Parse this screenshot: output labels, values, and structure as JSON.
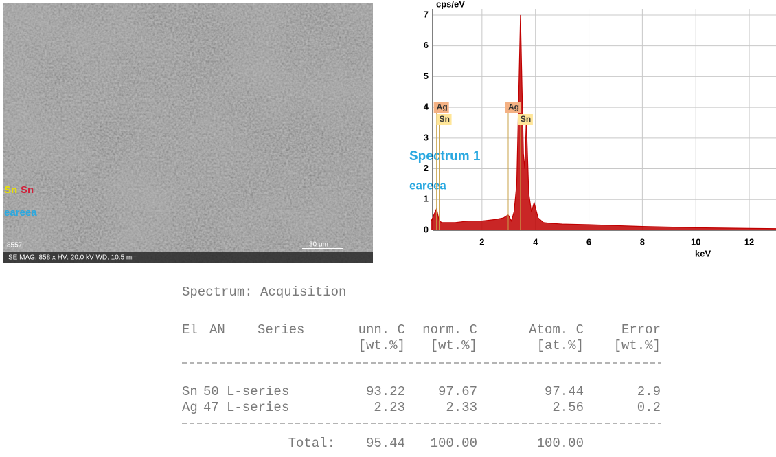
{
  "sem_image": {
    "overlay_labels": [
      {
        "text": "Sn",
        "color": "#e8e000"
      },
      {
        "text": "Sn",
        "color": "#d0203a"
      }
    ],
    "area_label": "eareea",
    "id": "8557",
    "scale_bar": "30 µm",
    "footer": "SE  MAG: 858 x  HV: 20.0 kV  WD: 10.5 mm"
  },
  "chart_data": {
    "type": "area",
    "ylabel": "cps/eV",
    "xlabel": "keV",
    "annotations": [
      "Spectrum  1",
      "eareea"
    ],
    "xlim": [
      0,
      13
    ],
    "ylim": [
      0,
      7.2
    ],
    "xticks": [
      2,
      4,
      6,
      8,
      10,
      12
    ],
    "yticks": [
      0,
      1,
      2,
      3,
      4,
      5,
      6,
      7
    ],
    "grid": true,
    "series": [
      {
        "color": "#c00000",
        "x": [
          0.1,
          0.2,
          0.3,
          0.4,
          0.5,
          0.7,
          1,
          1.5,
          2,
          2.5,
          2.8,
          2.98,
          3.1,
          3.2,
          3.3,
          3.44,
          3.55,
          3.6,
          3.66,
          3.75,
          3.85,
          3.95,
          4.1,
          4.3,
          4.6,
          5,
          6,
          7,
          8,
          9,
          10,
          11,
          12,
          13
        ],
        "values": [
          0.3,
          0.5,
          0.7,
          0.3,
          0.25,
          0.25,
          0.25,
          0.3,
          0.3,
          0.35,
          0.4,
          0.5,
          0.3,
          0.6,
          1.5,
          7.0,
          2.5,
          2.0,
          3.6,
          1.2,
          0.6,
          0.9,
          0.4,
          0.25,
          0.22,
          0.2,
          0.18,
          0.15,
          0.12,
          0.1,
          0.08,
          0.07,
          0.06,
          0.05
        ]
      }
    ],
    "markers": [
      {
        "label": "Ag",
        "x": 0.3,
        "color": "#f4b183",
        "level": 4
      },
      {
        "label": "Sn",
        "x": 0.4,
        "color": "#ffe699",
        "level": 3.6
      },
      {
        "label": "Ag",
        "x": 2.98,
        "color": "#f4b183",
        "level": 4
      },
      {
        "label": "Sn",
        "x": 3.44,
        "color": "#ffe699",
        "level": 3.6
      }
    ]
  },
  "table": {
    "title": "Spectrum: Acquisition",
    "header": [
      "El",
      "AN",
      "Series",
      "unn. C",
      "norm. C",
      "Atom. C",
      "Error"
    ],
    "units": [
      "[wt.%]",
      "[wt.%]",
      "[at.%]",
      "[wt.%]"
    ],
    "rows": [
      [
        "Sn",
        "50",
        "L-series",
        "93.22",
        "97.67",
        "97.44",
        "2.9"
      ],
      [
        "Ag",
        "47",
        "L-series",
        "2.23",
        "2.33",
        "2.56",
        "0.2"
      ]
    ],
    "total": {
      "label": "Total:",
      "values": [
        "95.44",
        "100.00",
        "100.00"
      ]
    }
  }
}
